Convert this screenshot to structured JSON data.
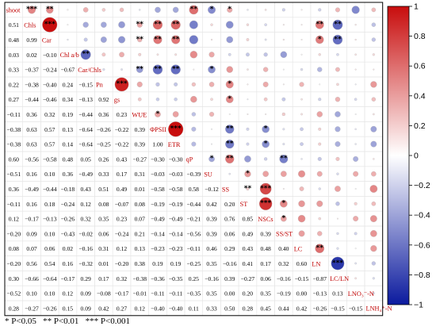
{
  "chart_data": {
    "type": "heatmap",
    "variables": [
      "shoot",
      "Chls",
      "Car",
      "Chl a/b",
      "Car/Chls",
      "Pn",
      "gs",
      "WUE",
      "ΦPSII",
      "ETR",
      "qP",
      "SU",
      "SS",
      "ST",
      "NSCs",
      "SS/ST",
      "LC",
      "LN",
      "LC/LN",
      "LNO₃⁻-N",
      "LNH₄⁺-N"
    ],
    "lower": [
      [
        0.51
      ],
      [
        0.48,
        0.99
      ],
      [
        0.03,
        0.02,
        -0.1
      ],
      [
        0.33,
        -0.37,
        -0.24,
        -0.67
      ],
      [
        0.22,
        -0.38,
        -0.4,
        0.24,
        -0.15
      ],
      [
        0.27,
        -0.44,
        -0.46,
        0.34,
        -0.13,
        0.92
      ],
      [
        -0.11,
        0.36,
        0.32,
        0.19,
        -0.44,
        0.36,
        0.23
      ],
      [
        -0.38,
        0.63,
        0.57,
        0.13,
        -0.64,
        -0.26,
        -0.22,
        0.39
      ],
      [
        -0.38,
        0.63,
        0.57,
        0.14,
        -0.64,
        -0.25,
        -0.22,
        0.39,
        1.0
      ],
      [
        0.6,
        -0.56,
        -0.58,
        0.48,
        0.05,
        0.26,
        0.43,
        -0.27,
        -0.3,
        -0.3
      ],
      [
        -0.51,
        0.16,
        0.1,
        0.36,
        -0.49,
        0.33,
        0.17,
        0.31,
        -0.03,
        -0.03,
        -0.39
      ],
      [
        0.36,
        -0.49,
        -0.44,
        -0.18,
        0.43,
        0.51,
        0.49,
        0.01,
        -0.58,
        -0.58,
        0.58,
        -0.12
      ],
      [
        -0.11,
        0.16,
        0.18,
        -0.24,
        0.12,
        0.08,
        -0.07,
        0.08,
        -0.19,
        -0.19,
        -0.44,
        0.42,
        0.2
      ],
      [
        0.12,
        -0.17,
        -0.13,
        -0.26,
        0.32,
        0.35,
        0.23,
        0.07,
        -0.49,
        -0.49,
        -0.21,
        0.39,
        0.76,
        0.85
      ],
      [
        -0.2,
        0.09,
        0.1,
        -0.43,
        -0.02,
        0.06,
        -0.24,
        0.21,
        -0.14,
        -0.14,
        -0.56,
        0.39,
        0.06,
        0.49,
        0.39
      ],
      [
        0.08,
        0.07,
        0.06,
        0.02,
        -0.16,
        0.31,
        0.12,
        0.13,
        -0.23,
        -0.23,
        -0.11,
        0.46,
        0.29,
        0.43,
        0.48,
        0.4
      ],
      [
        -0.2,
        0.56,
        0.54,
        0.16,
        -0.32,
        0.01,
        -0.2,
        0.38,
        0.19,
        0.19,
        -0.25,
        0.35,
        -0.16,
        0.41,
        0.17,
        0.32,
        0.6
      ],
      [
        0.3,
        -0.66,
        -0.64,
        -0.17,
        0.29,
        0.17,
        0.32,
        -0.38,
        -0.36,
        -0.35,
        0.25,
        -0.16,
        0.39,
        -0.27,
        0.06,
        -0.16,
        -0.15,
        -0.87
      ],
      [
        -0.52,
        0.1,
        0.1,
        0.12,
        0.09,
        -0.08,
        -0.17,
        -0.01,
        -0.11,
        -0.11,
        -0.35,
        0.35,
        -0.0,
        0.2,
        0.35,
        -0.19,
        0.0,
        -0.13,
        0.13
      ],
      [
        0.28,
        -0.27,
        -0.26,
        0.15,
        0.09,
        0.42,
        0.27,
        0.12,
        -0.4,
        -0.4,
        0.11,
        0.33,
        0.5,
        0.28,
        0.45,
        0.44,
        0.42,
        -0.26,
        -0.15,
        -0.15
      ]
    ],
    "stars": {
      "0-1": "***",
      "0-2": "**",
      "0-10": "**",
      "0-11": "*",
      "0-12": "*",
      "1-2": "***",
      "1-7": "**",
      "1-8": "**",
      "1-9": "**",
      "1-17": "**",
      "1-18": "**",
      "2-7": "**",
      "2-8": "**",
      "2-9": "**",
      "2-17": "*",
      "2-18": "**",
      "3-4": "**",
      "4-7": "**",
      "4-8": "**",
      "4-9": "**",
      "4-11": "*",
      "5-6": "***",
      "5-12": "*",
      "6-12": "*",
      "7-8": "*",
      "8-9": "***",
      "8-12": "**",
      "8-14": "*",
      "9-12": "**",
      "9-14": "*",
      "10-11": "*",
      "10-12": "**",
      "10-15": "**",
      "11-13": "*",
      "12-13": "**",
      "12-14": "***",
      "13-14": "***",
      "13-15": "*",
      "14-15": "*",
      "16-17": "**",
      "17-18": "***"
    },
    "colorbar": {
      "ticks": [
        1,
        0.8,
        0.6,
        0.4,
        0.2,
        0,
        -0.2,
        -0.4,
        -0.6,
        -0.8,
        -1
      ],
      "min": -1,
      "max": 1,
      "low_color": "#0b1a9e",
      "mid_color": "#ffffff",
      "high_color": "#c80d0d"
    }
  },
  "footnote": {
    "p05": "* P<0.05",
    "p01": "** P<0.01",
    "p001": "*** P<0.001"
  }
}
